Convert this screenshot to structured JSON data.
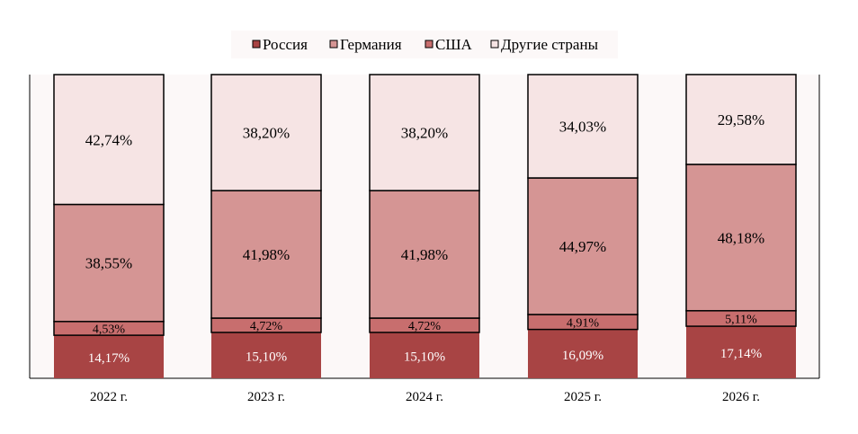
{
  "chart_data": {
    "type": "bar",
    "stacked": true,
    "title": "",
    "xlabel": "",
    "ylabel": "",
    "ylim": [
      0,
      100
    ],
    "grid": false,
    "legend_position": "top-center",
    "categories": [
      "2022 г.",
      "2023 г.",
      "2024 г.",
      "2025 г.",
      "2026 г."
    ],
    "series": [
      {
        "name": "Россия",
        "color": "#a84444",
        "values": [
          14.17,
          15.1,
          15.1,
          16.09,
          17.14
        ],
        "labels": [
          "14,17%",
          "15,10%",
          "15,10%",
          "16,09%",
          "17,14%"
        ]
      },
      {
        "name": "США",
        "color": "#c86e6e",
        "values": [
          4.53,
          4.72,
          4.72,
          4.91,
          5.11
        ],
        "labels": [
          "4,53%",
          "4,72%",
          "4,72%",
          "4,91%",
          "5,11%"
        ]
      },
      {
        "name": "Германия",
        "color": "#d59594",
        "values": [
          38.55,
          41.98,
          41.98,
          44.97,
          48.18
        ],
        "labels": [
          "38,55%",
          "41,98%",
          "41,98%",
          "44,97%",
          "48,18%"
        ]
      },
      {
        "name": "Другие страны",
        "color": "#f6e4e4",
        "values": [
          42.74,
          38.2,
          38.2,
          34.03,
          29.58
        ],
        "labels": [
          "42,74%",
          "38,20%",
          "38,20%",
          "34,03%",
          "29,58%"
        ]
      }
    ],
    "legend_order": [
      "Россия",
      "Германия",
      "США",
      "Другие страны"
    ],
    "colors": {
      "plot_background": "#fcf8f8",
      "legend_background": "#fcf8f8"
    }
  }
}
